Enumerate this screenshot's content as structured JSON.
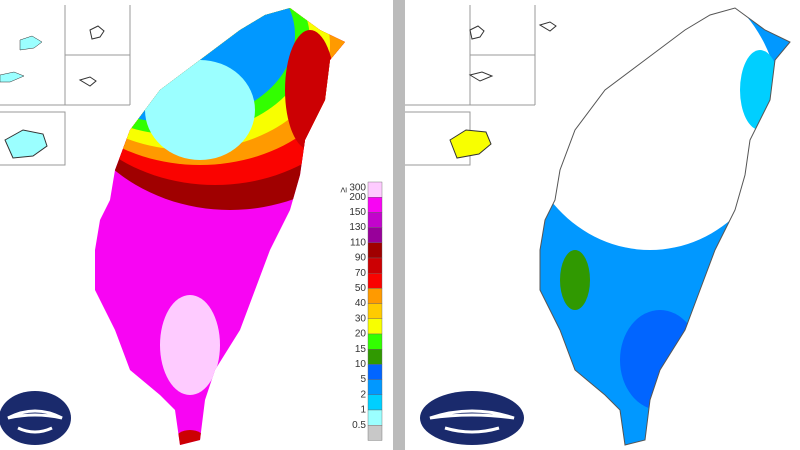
{
  "legend": {
    "symbol": "≥",
    "items": [
      {
        "label": "300",
        "color": "#fecbff"
      },
      {
        "label": "200",
        "color": "#f805f3"
      },
      {
        "label": "150",
        "color": "#c304cc"
      },
      {
        "label": "130",
        "color": "#98009a"
      },
      {
        "label": "110",
        "color": "#a00000"
      },
      {
        "label": "90",
        "color": "#cc0003"
      },
      {
        "label": "70",
        "color": "#fa0300"
      },
      {
        "label": "50",
        "color": "#ff9a00"
      },
      {
        "label": "40",
        "color": "#ffcb00"
      },
      {
        "label": "30",
        "color": "#f8ff00"
      },
      {
        "label": "20",
        "color": "#32ff00"
      },
      {
        "label": "15",
        "color": "#309901"
      },
      {
        "label": "10",
        "color": "#0165ff"
      },
      {
        "label": "5",
        "color": "#0198ff"
      },
      {
        "label": "2",
        "color": "#00cfff"
      },
      {
        "label": "1",
        "color": "#9bffff"
      },
      {
        "label": "0.5",
        "color": "#c8c8c8"
      }
    ]
  }
}
